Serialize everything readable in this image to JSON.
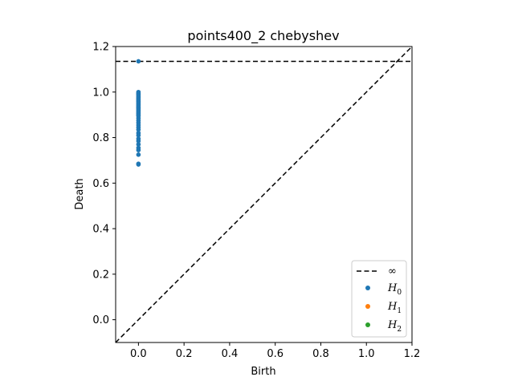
{
  "chart_data": {
    "type": "scatter",
    "title": "points400_2 chebyshev",
    "xlabel": "Birth",
    "ylabel": "Death",
    "xlim": [
      -0.1,
      1.2
    ],
    "ylim": [
      -0.1,
      1.2
    ],
    "x_ticks": [
      "0.0",
      "0.2",
      "0.4",
      "0.6",
      "0.8",
      "1.0",
      "1.2"
    ],
    "y_ticks": [
      "0.0",
      "0.2",
      "0.4",
      "0.6",
      "0.8",
      "1.0",
      "1.2"
    ],
    "grid": false,
    "legend_position": "bottom-right",
    "infinity_line": {
      "y": 1.135,
      "label": "∞",
      "color": "#000000",
      "style": "dashed"
    },
    "diagonal": {
      "style": "dashed",
      "color": "#000000"
    },
    "series": [
      {
        "name": "H0",
        "color": "#1f77b4",
        "points": [
          [
            0,
            1.135
          ],
          [
            0,
            1.0
          ],
          [
            0,
            0.995
          ],
          [
            0,
            0.99
          ],
          [
            0,
            0.985
          ],
          [
            0,
            0.98
          ],
          [
            0,
            0.975
          ],
          [
            0,
            0.97
          ],
          [
            0,
            0.965
          ],
          [
            0,
            0.96
          ],
          [
            0,
            0.955
          ],
          [
            0,
            0.95
          ],
          [
            0,
            0.945
          ],
          [
            0,
            0.94
          ],
          [
            0,
            0.935
          ],
          [
            0,
            0.93
          ],
          [
            0,
            0.925
          ],
          [
            0,
            0.92
          ],
          [
            0,
            0.915
          ],
          [
            0,
            0.91
          ],
          [
            0,
            0.905
          ],
          [
            0,
            0.9
          ],
          [
            0,
            0.895
          ],
          [
            0,
            0.885
          ],
          [
            0,
            0.875
          ],
          [
            0,
            0.865
          ],
          [
            0,
            0.855
          ],
          [
            0,
            0.845
          ],
          [
            0,
            0.835
          ],
          [
            0,
            0.82
          ],
          [
            0,
            0.81
          ],
          [
            0,
            0.795
          ],
          [
            0,
            0.785
          ],
          [
            0,
            0.77
          ],
          [
            0,
            0.755
          ],
          [
            0,
            0.745
          ],
          [
            0,
            0.725
          ],
          [
            0,
            0.685
          ],
          [
            0,
            0.682
          ]
        ]
      },
      {
        "name": "H1",
        "color": "#ff7f0e",
        "points": []
      },
      {
        "name": "H2",
        "color": "#2ca02c",
        "points": []
      }
    ]
  }
}
